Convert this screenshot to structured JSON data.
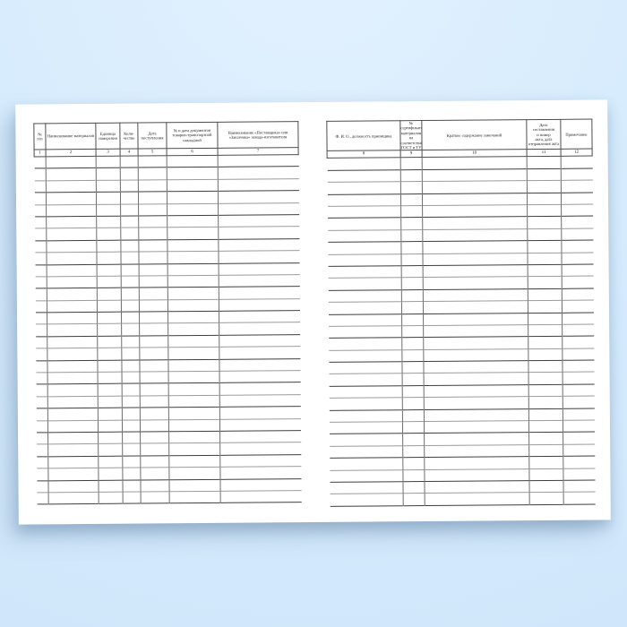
{
  "document": {
    "kind": "blank-registration-journal-spread",
    "visible_pages": 2
  },
  "left_table": {
    "columns": [
      {
        "num": "1",
        "label": "№\nп/п"
      },
      {
        "num": "2",
        "label": "Наименование материалов"
      },
      {
        "num": "3",
        "label": "Единица\nизмерения"
      },
      {
        "num": "4",
        "label": "Коли-\nчество"
      },
      {
        "num": "5",
        "label": "Дата\nпоступления"
      },
      {
        "num": "6",
        "label": "№ и дата документов\nтоварно-транспортной\nнакладной"
      },
      {
        "num": "7",
        "label": "Наименование «Поставщика» или\n«Заказчика» завода-изготовителя"
      }
    ]
  },
  "right_table": {
    "columns": [
      {
        "num": "8",
        "label": "Ф. И. О., должность приемщика"
      },
      {
        "num": "9",
        "label": "№ сертификатов\nматериалов\nна соответствие\nГОСТ и ТУ"
      },
      {
        "num": "10",
        "label": "Краткое содержание замечаний"
      },
      {
        "num": "11",
        "label": "Дата\nсоставления\nи номер\nакта, дата\nотправления акта"
      },
      {
        "num": "12",
        "label": "Примечание"
      }
    ]
  },
  "layout_counts": {
    "data_rows_per_page": 29
  },
  "colors": {
    "background_blue": "#d7ecfd",
    "page_white": "#ffffff",
    "grid_dark_line": "#3e3e3e",
    "grid_light_line": "#9b9b9b",
    "header_border": "#4d4d4d",
    "shadow": "rgba(96,128,164,0.38)"
  }
}
